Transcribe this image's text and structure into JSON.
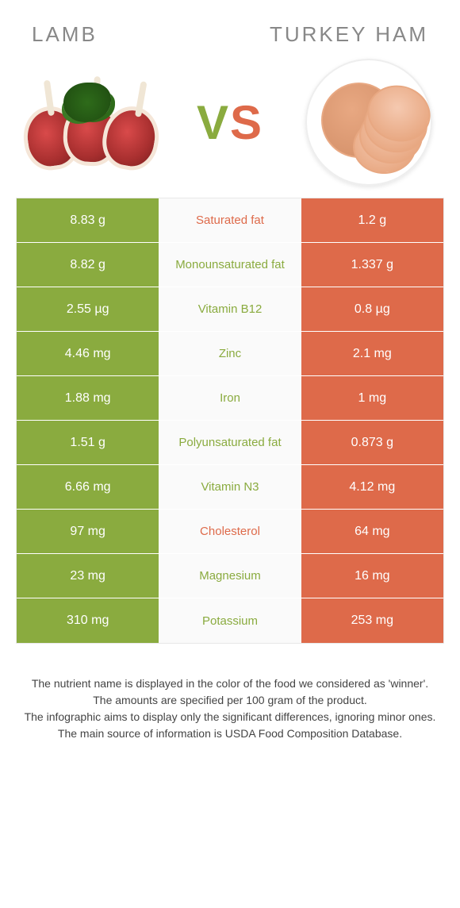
{
  "header": {
    "left_title": "Lamb",
    "right_title": "Turkey ham",
    "vs_v": "V",
    "vs_s": "S"
  },
  "colors": {
    "green": "#8aab3f",
    "orange": "#de6a4a",
    "mid_bg": "#fafafa",
    "text_white": "#ffffff"
  },
  "table": {
    "rows": [
      {
        "left": "8.83 g",
        "label": "Saturated fat",
        "right": "1.2 g",
        "winner": "orange"
      },
      {
        "left": "8.82 g",
        "label": "Monounsaturated fat",
        "right": "1.337 g",
        "winner": "green"
      },
      {
        "left": "2.55 µg",
        "label": "Vitamin B12",
        "right": "0.8 µg",
        "winner": "green"
      },
      {
        "left": "4.46 mg",
        "label": "Zinc",
        "right": "2.1 mg",
        "winner": "green"
      },
      {
        "left": "1.88 mg",
        "label": "Iron",
        "right": "1 mg",
        "winner": "green"
      },
      {
        "left": "1.51 g",
        "label": "Polyunsaturated fat",
        "right": "0.873 g",
        "winner": "green"
      },
      {
        "left": "6.66 mg",
        "label": "Vitamin N3",
        "right": "4.12 mg",
        "winner": "green"
      },
      {
        "left": "97 mg",
        "label": "Cholesterol",
        "right": "64 mg",
        "winner": "orange"
      },
      {
        "left": "23 mg",
        "label": "Magnesium",
        "right": "16 mg",
        "winner": "green"
      },
      {
        "left": "310 mg",
        "label": "Potassium",
        "right": "253 mg",
        "winner": "green"
      }
    ]
  },
  "footer": {
    "line1": "The nutrient name is displayed in the color of the food we considered as 'winner'.",
    "line2": "The amounts are specified per 100 gram of the product.",
    "line3": "The infographic aims to display only the significant differences, ignoring minor ones.",
    "line4": "The main source of information is USDA Food Composition Database."
  }
}
